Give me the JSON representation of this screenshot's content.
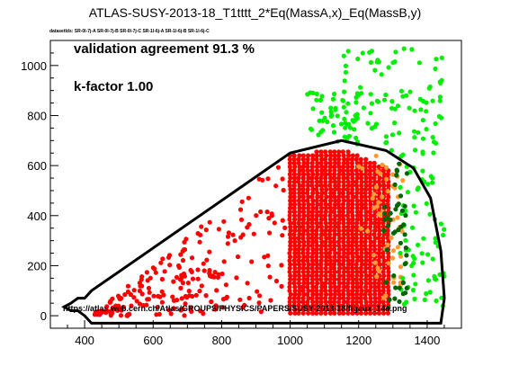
{
  "chart_data": {
    "type": "scatter",
    "title": "ATLAS-SUSY-2013-18_T1tttt_2*Eq(MassA,x)_Eq(MassB,y)",
    "datasets_label": "datasetIds: SR-0l-7j-A SR-0l-7j-B SR-0l-7j-C SR-1l-6j-A SR-1l-6j-B SR-1l-6j-C",
    "annotations": {
      "agreement": "validation agreement 91.3 %",
      "kfactor": "k-factor 1.00",
      "url": "https://atlas.web.cern.ch/Atlas/GROUPS/PHYSICS/PAPERS/SUSY-2013-18/figaux_14a.png"
    },
    "xlabel": "",
    "ylabel": "",
    "xlim": [
      300,
      1500
    ],
    "ylim": [
      -50,
      1100
    ],
    "xticks": [
      400,
      600,
      800,
      1000,
      1200,
      1400
    ],
    "yticks": [
      0,
      200,
      400,
      600,
      800,
      1000
    ],
    "colors": {
      "excluded_agree": "#ff0000",
      "allowed_agree": "#00ee00",
      "excluded_disagree": "#ff9933",
      "allowed_disagree": "#006600",
      "contour": "#000000"
    },
    "contour": [
      [
        360,
        50
      ],
      [
        380,
        70
      ],
      [
        400,
        70
      ],
      [
        420,
        100
      ],
      [
        1000,
        650
      ],
      [
        1150,
        700
      ],
      [
        1280,
        660
      ],
      [
        1360,
        590
      ],
      [
        1410,
        470
      ],
      [
        1440,
        260
      ],
      [
        1450,
        70
      ],
      [
        1440,
        -30
      ],
      [
        420,
        -30
      ],
      [
        400,
        0
      ],
      [
        380,
        20
      ],
      [
        360,
        20
      ],
      [
        340,
        35
      ],
      [
        360,
        50
      ]
    ],
    "regions": {
      "red_triangle": {
        "x_min": 420,
        "x_max": 1000,
        "y_bottom": 0,
        "y_top_at_xmax": 650
      },
      "red_dense": {
        "x_min": 1000,
        "x_max": 1300,
        "y_min": 0,
        "y_max": 670
      },
      "orange_band": {
        "x_min": 1200,
        "x_max": 1330
      },
      "dkgreen_band": {
        "x_min": 1280,
        "x_max": 1340
      },
      "green": {
        "x_min": 1150,
        "x_max": 1450,
        "y_max": 1070
      }
    },
    "series": [
      {
        "name": "",
        "color": "#ff0000"
      },
      {
        "name": "",
        "color": "#00ee00"
      },
      {
        "name": "",
        "color": "#ff9933"
      },
      {
        "name": "",
        "color": "#006600"
      }
    ]
  }
}
